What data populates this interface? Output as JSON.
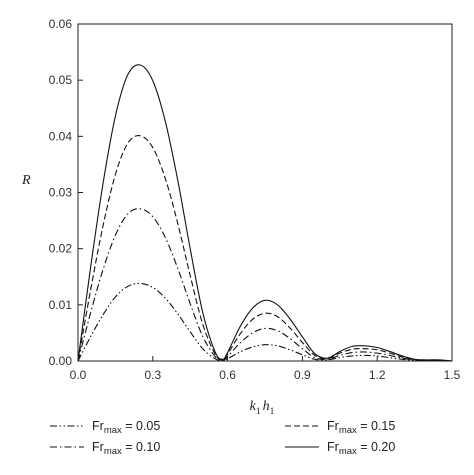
{
  "chart_data": {
    "type": "line",
    "xlabel_main": "k",
    "xlabel_sub1": "1",
    "xlabel_mid": "h",
    "xlabel_sub2": "1",
    "ylabel": "R",
    "xlim": [
      0.0,
      1.5
    ],
    "ylim": [
      0.0,
      0.06
    ],
    "x_ticks": [
      0.0,
      0.3,
      0.6,
      0.9,
      1.2,
      1.5
    ],
    "x_tick_labels": [
      "0.0",
      "0.3",
      "0.6",
      "0.9",
      "1.2",
      "1.5"
    ],
    "y_ticks": [
      0.0,
      0.01,
      0.02,
      0.03,
      0.04,
      0.05,
      0.06
    ],
    "y_tick_labels": [
      "0.00",
      "0.01",
      "0.02",
      "0.03",
      "0.04",
      "0.05",
      "0.06"
    ],
    "grid": false,
    "legend_position": "bottom",
    "series": [
      {
        "name_main": "Fr",
        "name_sub": "max",
        "name_value": " = 0.05",
        "dash": "dash-dot-dot",
        "x": [
          0.0,
          0.05,
          0.1,
          0.15,
          0.2,
          0.25,
          0.3,
          0.35,
          0.4,
          0.45,
          0.5,
          0.55,
          0.58,
          0.6,
          0.65,
          0.7,
          0.75,
          0.8,
          0.85,
          0.9,
          0.95,
          1.0,
          1.05,
          1.1,
          1.15,
          1.2,
          1.25,
          1.3,
          1.35,
          1.4,
          1.45,
          1.5
        ],
        "y": [
          0.0,
          0.0043,
          0.0082,
          0.0114,
          0.0133,
          0.0138,
          0.0131,
          0.0112,
          0.0084,
          0.0052,
          0.0022,
          0.0004,
          0.0001,
          0.0004,
          0.0016,
          0.0025,
          0.0029,
          0.0027,
          0.002,
          0.0011,
          0.0003,
          0.0002,
          0.0006,
          0.0009,
          0.001,
          0.0009,
          0.0006,
          0.0003,
          0.0001,
          0.0001,
          0.0001,
          0.0
        ]
      },
      {
        "name_main": "Fr",
        "name_sub": "max",
        "name_value": " = 0.10",
        "dash": "dash-dot",
        "x": [
          0.0,
          0.05,
          0.1,
          0.15,
          0.2,
          0.25,
          0.3,
          0.35,
          0.4,
          0.45,
          0.5,
          0.55,
          0.58,
          0.6,
          0.65,
          0.7,
          0.75,
          0.8,
          0.85,
          0.9,
          0.95,
          1.0,
          1.05,
          1.1,
          1.15,
          1.2,
          1.25,
          1.3,
          1.35,
          1.4,
          1.45,
          1.5
        ],
        "y": [
          0.0,
          0.0085,
          0.0162,
          0.0224,
          0.0262,
          0.0271,
          0.0257,
          0.022,
          0.0165,
          0.0102,
          0.0044,
          0.0008,
          0.0001,
          0.0008,
          0.0032,
          0.005,
          0.0058,
          0.0054,
          0.004,
          0.0022,
          0.0006,
          0.0003,
          0.001,
          0.0015,
          0.0016,
          0.0014,
          0.001,
          0.0005,
          0.0002,
          0.0001,
          0.0001,
          0.0
        ]
      },
      {
        "name_main": "Fr",
        "name_sub": "max",
        "name_value": " = 0.15",
        "dash": "dashed",
        "x": [
          0.0,
          0.05,
          0.1,
          0.15,
          0.2,
          0.25,
          0.3,
          0.35,
          0.4,
          0.45,
          0.5,
          0.55,
          0.58,
          0.6,
          0.65,
          0.7,
          0.75,
          0.8,
          0.85,
          0.9,
          0.95,
          1.0,
          1.05,
          1.1,
          1.15,
          1.2,
          1.25,
          1.3,
          1.35,
          1.4,
          1.45,
          1.5
        ],
        "y": [
          0.0,
          0.0125,
          0.024,
          0.0332,
          0.0388,
          0.0401,
          0.038,
          0.0325,
          0.0245,
          0.0152,
          0.0066,
          0.0012,
          0.0002,
          0.0012,
          0.0048,
          0.0074,
          0.0085,
          0.0079,
          0.0059,
          0.0033,
          0.001,
          0.0004,
          0.0014,
          0.0021,
          0.0022,
          0.002,
          0.0014,
          0.0007,
          0.0002,
          0.0001,
          0.0001,
          0.0
        ]
      },
      {
        "name_main": "Fr",
        "name_sub": "max",
        "name_value": " = 0.20",
        "dash": "solid",
        "x": [
          0.0,
          0.05,
          0.1,
          0.15,
          0.2,
          0.25,
          0.3,
          0.35,
          0.4,
          0.45,
          0.5,
          0.55,
          0.58,
          0.6,
          0.65,
          0.7,
          0.75,
          0.8,
          0.85,
          0.9,
          0.95,
          1.0,
          1.05,
          1.1,
          1.15,
          1.2,
          1.25,
          1.3,
          1.35,
          1.4,
          1.45,
          1.5
        ],
        "y": [
          0.0,
          0.0165,
          0.0315,
          0.0436,
          0.051,
          0.0527,
          0.0499,
          0.0427,
          0.0322,
          0.02,
          0.0087,
          0.0016,
          0.0003,
          0.0015,
          0.0061,
          0.0094,
          0.0108,
          0.01,
          0.0075,
          0.0043,
          0.0013,
          0.0005,
          0.0017,
          0.0026,
          0.0027,
          0.0024,
          0.0017,
          0.0009,
          0.0003,
          0.0002,
          0.0002,
          0.0
        ]
      }
    ]
  }
}
